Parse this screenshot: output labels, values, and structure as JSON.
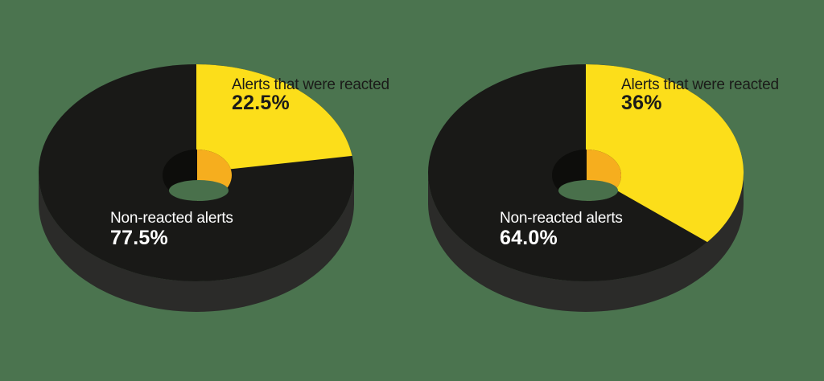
{
  "colors": {
    "background": "#4B744F",
    "slice_reacted": "#FCDE1A",
    "slice_non_reacted": "#191917",
    "donut_side": "#2B2B29",
    "hole_bevel_dark": "#0D0D0B",
    "hole_bevel_orange": "#F6AE1E",
    "hole_opening": "#49704B",
    "text_dark": "#1B1B19",
    "text_light": "#FFFFFF"
  },
  "charts": [
    {
      "reacted_label": "Alerts that were reacted",
      "reacted_value": "22.5%",
      "non_reacted_label": "Non-reacted alerts",
      "non_reacted_value": "77.5%"
    },
    {
      "reacted_label": "Alerts that were reacted",
      "reacted_value": "36%",
      "non_reacted_label": "Non-reacted alerts",
      "non_reacted_value": "64.0%"
    }
  ],
  "chart_data": [
    {
      "type": "pie",
      "title": "",
      "labels": [
        "Alerts that were reacted",
        "Non-reacted alerts"
      ],
      "values": [
        22.5,
        77.5
      ],
      "colors": [
        "#FCDE1A",
        "#191917"
      ],
      "style": "3d-donut",
      "start_angle_deg": 0,
      "direction": "clockwise",
      "legend_position": "none",
      "data_labels": [
        "22.5%",
        "77.5%"
      ]
    },
    {
      "type": "pie",
      "title": "",
      "labels": [
        "Alerts that were reacted",
        "Non-reacted alerts"
      ],
      "values": [
        36,
        64
      ],
      "colors": [
        "#FCDE1A",
        "#191917"
      ],
      "style": "3d-donut",
      "start_angle_deg": 0,
      "direction": "clockwise",
      "legend_position": "none",
      "data_labels": [
        "36%",
        "64.0%"
      ]
    }
  ]
}
